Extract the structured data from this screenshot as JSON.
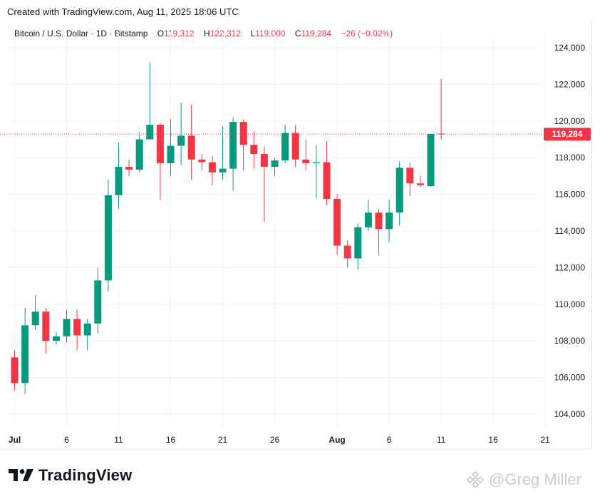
{
  "header": {
    "created_text": "Created with TradingView.com, Aug 11, 2025 18:06 UTC"
  },
  "legend": {
    "symbol": "Bitcoin / U.S. Dollar · 1D · Bitstamp",
    "o_label": "O",
    "o_value": "119,312",
    "h_label": "H",
    "h_value": "122,312",
    "l_label": "L",
    "l_value": "119,000",
    "c_label": "C",
    "c_value": "119,284",
    "change": "−26 (−0.02%)"
  },
  "brand": {
    "name": "TradingView",
    "logo_icon": "tradingview-logo-icon"
  },
  "watermark": {
    "text": "@Greg Miller",
    "icon": "binance-icon"
  },
  "colors": {
    "up": "#089981",
    "down": "#f23645",
    "grid": "#f0f3fa",
    "axis_text": "#131722",
    "bg": "#ffffff"
  },
  "chart_data": {
    "type": "candlestick",
    "title": "Bitcoin / U.S. Dollar · 1D · Bitstamp",
    "xlabel": "",
    "ylabel": "",
    "ylim": [
      103300,
      125000
    ],
    "y_ticks": [
      104000,
      106000,
      108000,
      110000,
      112000,
      114000,
      116000,
      118000,
      120000,
      122000,
      124000
    ],
    "y_tick_labels": [
      "104,000",
      "106,000",
      "108,000",
      "110,000",
      "112,000",
      "114,000",
      "116,000",
      "118,000",
      "120,000",
      "122,000",
      "124,000"
    ],
    "x_ticks": [
      {
        "index": 0,
        "label": "Jul"
      },
      {
        "index": 5,
        "label": "6"
      },
      {
        "index": 10,
        "label": "11"
      },
      {
        "index": 15,
        "label": "16"
      },
      {
        "index": 20,
        "label": "21"
      },
      {
        "index": 25,
        "label": "26"
      },
      {
        "index": 31,
        "label": "Aug"
      },
      {
        "index": 36,
        "label": "6"
      },
      {
        "index": 41,
        "label": "11"
      },
      {
        "index": 46,
        "label": "16"
      },
      {
        "index": 51,
        "label": "21"
      }
    ],
    "last_price": 119284,
    "last_price_label": "119,284",
    "grid": true,
    "candles": [
      {
        "date": "2025-07-01",
        "o": 107100,
        "h": 107500,
        "l": 105300,
        "c": 105700
      },
      {
        "date": "2025-07-02",
        "o": 105700,
        "h": 109800,
        "l": 105100,
        "c": 108850
      },
      {
        "date": "2025-07-03",
        "o": 108850,
        "h": 110500,
        "l": 108600,
        "c": 109600
      },
      {
        "date": "2025-07-04",
        "o": 109600,
        "h": 109800,
        "l": 107300,
        "c": 108000
      },
      {
        "date": "2025-07-05",
        "o": 108000,
        "h": 108500,
        "l": 107800,
        "c": 108250
      },
      {
        "date": "2025-07-06",
        "o": 108250,
        "h": 109700,
        "l": 107900,
        "c": 109200
      },
      {
        "date": "2025-07-07",
        "o": 109200,
        "h": 109700,
        "l": 107500,
        "c": 108300
      },
      {
        "date": "2025-07-08",
        "o": 108300,
        "h": 109200,
        "l": 107500,
        "c": 108950
      },
      {
        "date": "2025-07-09",
        "o": 108950,
        "h": 112000,
        "l": 108400,
        "c": 111300
      },
      {
        "date": "2025-07-10",
        "o": 111300,
        "h": 116800,
        "l": 110700,
        "c": 115950
      },
      {
        "date": "2025-07-11",
        "o": 115950,
        "h": 118800,
        "l": 115200,
        "c": 117500
      },
      {
        "date": "2025-07-12",
        "o": 117500,
        "h": 117900,
        "l": 117000,
        "c": 117350
      },
      {
        "date": "2025-07-13",
        "o": 117350,
        "h": 119400,
        "l": 117200,
        "c": 119000
      },
      {
        "date": "2025-07-14",
        "o": 119000,
        "h": 123200,
        "l": 119000,
        "c": 119800
      },
      {
        "date": "2025-07-15",
        "o": 119800,
        "h": 119900,
        "l": 115700,
        "c": 117700
      },
      {
        "date": "2025-07-16",
        "o": 117700,
        "h": 120100,
        "l": 117000,
        "c": 118650
      },
      {
        "date": "2025-07-17",
        "o": 118650,
        "h": 121000,
        "l": 117600,
        "c": 119200
      },
      {
        "date": "2025-07-18",
        "o": 119200,
        "h": 120900,
        "l": 116800,
        "c": 117900
      },
      {
        "date": "2025-07-19",
        "o": 117900,
        "h": 118200,
        "l": 117300,
        "c": 117750
      },
      {
        "date": "2025-07-20",
        "o": 117750,
        "h": 118100,
        "l": 116500,
        "c": 117200
      },
      {
        "date": "2025-07-21",
        "o": 117200,
        "h": 119700,
        "l": 116800,
        "c": 117400
      },
      {
        "date": "2025-07-22",
        "o": 117400,
        "h": 120200,
        "l": 116200,
        "c": 119950
      },
      {
        "date": "2025-07-23",
        "o": 119950,
        "h": 120100,
        "l": 117300,
        "c": 118700
      },
      {
        "date": "2025-07-24",
        "o": 118700,
        "h": 119400,
        "l": 117400,
        "c": 118200
      },
      {
        "date": "2025-07-25",
        "o": 118200,
        "h": 118600,
        "l": 114500,
        "c": 117500
      },
      {
        "date": "2025-07-26",
        "o": 117500,
        "h": 118000,
        "l": 117000,
        "c": 117850
      },
      {
        "date": "2025-07-27",
        "o": 117850,
        "h": 119800,
        "l": 117700,
        "c": 119350
      },
      {
        "date": "2025-07-28",
        "o": 119350,
        "h": 119800,
        "l": 117500,
        "c": 117900
      },
      {
        "date": "2025-07-29",
        "o": 117900,
        "h": 119000,
        "l": 117300,
        "c": 117700
      },
      {
        "date": "2025-07-30",
        "o": 117700,
        "h": 118700,
        "l": 115800,
        "c": 117750
      },
      {
        "date": "2025-07-31",
        "o": 117750,
        "h": 118900,
        "l": 115400,
        "c": 115750
      },
      {
        "date": "2025-08-01",
        "o": 115750,
        "h": 116000,
        "l": 112700,
        "c": 113200
      },
      {
        "date": "2025-08-02",
        "o": 113200,
        "h": 113500,
        "l": 112000,
        "c": 112500
      },
      {
        "date": "2025-08-03",
        "o": 112500,
        "h": 114400,
        "l": 111900,
        "c": 114200
      },
      {
        "date": "2025-08-04",
        "o": 114200,
        "h": 115700,
        "l": 114000,
        "c": 115000
      },
      {
        "date": "2025-08-05",
        "o": 115000,
        "h": 115200,
        "l": 112650,
        "c": 114100
      },
      {
        "date": "2025-08-06",
        "o": 114100,
        "h": 115700,
        "l": 113400,
        "c": 115000
      },
      {
        "date": "2025-08-07",
        "o": 115000,
        "h": 117800,
        "l": 114300,
        "c": 117450
      },
      {
        "date": "2025-08-08",
        "o": 117450,
        "h": 117700,
        "l": 115900,
        "c": 116600
      },
      {
        "date": "2025-08-09",
        "o": 116600,
        "h": 117000,
        "l": 116400,
        "c": 116500
      },
      {
        "date": "2025-08-10",
        "o": 116450,
        "h": 119300,
        "l": 116400,
        "c": 119300
      },
      {
        "date": "2025-08-11",
        "o": 119312,
        "h": 122312,
        "l": 119000,
        "c": 119284
      }
    ]
  }
}
